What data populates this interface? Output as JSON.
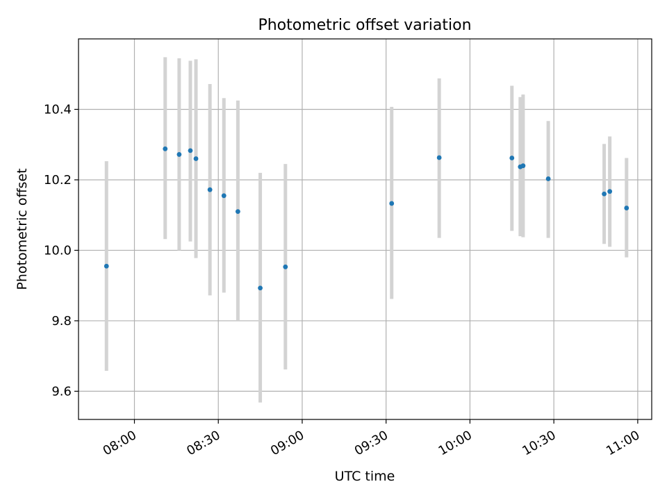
{
  "chart_data": {
    "type": "scatter",
    "title": "Photometric offset variation",
    "xlabel": "UTC time",
    "ylabel": "Photometric offset",
    "xlim": [
      "07:40",
      "11:05"
    ],
    "ylim": [
      9.52,
      10.6
    ],
    "x_ticks": [
      "08:00",
      "08:30",
      "09:00",
      "09:30",
      "10:00",
      "10:30",
      "11:00"
    ],
    "y_ticks": [
      "9.6",
      "9.8",
      "10.0",
      "10.2",
      "10.4"
    ],
    "grid": true,
    "series": [
      {
        "x": [
          "07:50",
          "08:11",
          "08:16",
          "08:20",
          "08:22",
          "08:27",
          "08:32",
          "08:37",
          "08:45",
          "08:54",
          "09:32",
          "09:49",
          "10:15",
          "10:18",
          "10:19",
          "10:28",
          "10:48",
          "10:50",
          "10:56"
        ],
        "y": [
          9.955,
          10.288,
          10.272,
          10.283,
          10.26,
          10.172,
          10.155,
          10.11,
          9.893,
          9.953,
          10.133,
          10.263,
          10.262,
          10.237,
          10.24,
          10.203,
          10.16,
          10.167,
          10.12
        ],
        "yerr_low": [
          9.658,
          10.032,
          10.0,
          10.025,
          9.978,
          9.872,
          9.88,
          9.8,
          9.568,
          9.662,
          9.862,
          10.035,
          10.055,
          10.04,
          10.037,
          10.035,
          10.018,
          10.01,
          9.98
        ],
        "yerr_high": [
          10.253,
          10.548,
          10.545,
          10.538,
          10.542,
          10.472,
          10.432,
          10.425,
          10.22,
          10.245,
          10.407,
          10.488,
          10.467,
          10.435,
          10.442,
          10.367,
          10.302,
          10.323,
          10.262
        ]
      }
    ]
  },
  "colors": {
    "marker": "#1f77b4",
    "errorbar": "#d3d3d3",
    "grid": "#b0b0b0",
    "axes": "#000000"
  }
}
